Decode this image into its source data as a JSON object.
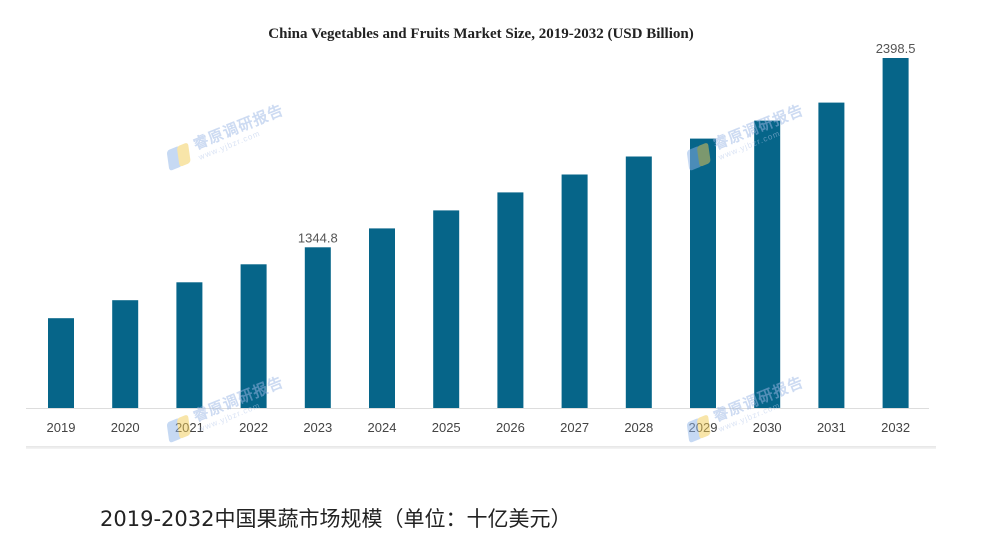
{
  "caption": "2019-2032中国果蔬市场规模（单位：十亿美元）",
  "watermark": {
    "name": "睿原调研报告",
    "url": "www.yjbzr.com"
  },
  "colors": {
    "bar": "#066589",
    "axis_line": "#dddddd",
    "tick_text": "#444444",
    "label_text": "#555555"
  },
  "chart_data": {
    "type": "bar",
    "title": "China Vegetables and Fruits Market Size, 2019-2032 (USD Billion)",
    "xlabel": "",
    "ylabel": "",
    "categories": [
      "2019",
      "2020",
      "2021",
      "2022",
      "2023",
      "2024",
      "2025",
      "2026",
      "2027",
      "2028",
      "2029",
      "2030",
      "2031",
      "2032"
    ],
    "values": [
      950,
      1050,
      1150,
      1250,
      1344.8,
      1450,
      1550,
      1650,
      1750,
      1850,
      1950,
      2050,
      2150,
      2398.5
    ],
    "data_labels": [
      {
        "category": "2023",
        "text": "1344.8"
      },
      {
        "category": "2032",
        "text": "2398.5"
      }
    ],
    "ylim": [
      450,
      2398.5
    ],
    "grid": false,
    "legend": "none"
  }
}
